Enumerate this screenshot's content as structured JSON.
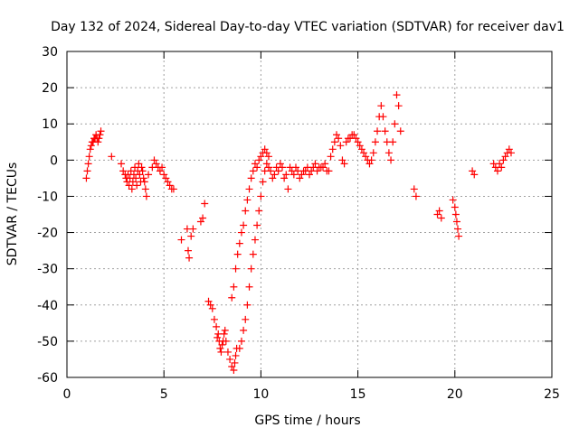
{
  "chart_data": {
    "type": "scatter",
    "title": "Day 132 of 2024, Sidereal Day-to-day VTEC variation (SDTVAR) for receiver dav1",
    "xlabel": "GPS time / hours",
    "ylabel": "SDTVAR / TECUs",
    "xlim": [
      0,
      25
    ],
    "ylim": [
      -60,
      30
    ],
    "xticks": [
      0,
      5,
      10,
      15,
      20,
      25
    ],
    "yticks": [
      -60,
      -50,
      -40,
      -30,
      -20,
      -10,
      0,
      10,
      20,
      30
    ],
    "grid": true,
    "marker": "+",
    "color": "#ff0000",
    "series": [
      {
        "name": "SDTVAR",
        "x": [
          1.0,
          1.05,
          1.1,
          1.15,
          1.2,
          1.25,
          1.3,
          1.35,
          1.4,
          1.45,
          1.5,
          1.55,
          1.6,
          1.65,
          1.7,
          1.75,
          2.3,
          2.8,
          2.9,
          3.0,
          3.05,
          3.1,
          3.15,
          3.2,
          3.25,
          3.3,
          3.35,
          3.4,
          3.45,
          3.5,
          3.55,
          3.6,
          3.65,
          3.7,
          3.75,
          3.8,
          3.85,
          3.9,
          3.95,
          4.0,
          4.05,
          4.1,
          4.2,
          4.4,
          4.5,
          4.6,
          4.7,
          4.8,
          4.9,
          5.0,
          5.1,
          5.2,
          5.3,
          5.4,
          5.5,
          5.9,
          6.2,
          6.25,
          6.3,
          6.4,
          6.5,
          6.9,
          7.0,
          7.1,
          7.3,
          7.4,
          7.5,
          7.6,
          7.7,
          7.75,
          7.8,
          7.85,
          7.9,
          7.95,
          8.0,
          8.05,
          8.1,
          8.15,
          8.2,
          8.3,
          8.4,
          8.5,
          8.6,
          8.65,
          8.7,
          8.75,
          8.5,
          8.6,
          8.7,
          8.8,
          8.9,
          9.0,
          9.1,
          9.2,
          9.3,
          9.4,
          9.5,
          9.6,
          9.7,
          9.8,
          9.9,
          10.0,
          10.1,
          10.2,
          10.3,
          8.9,
          9.0,
          9.1,
          9.2,
          9.3,
          9.4,
          9.5,
          9.6,
          9.7,
          9.8,
          9.9,
          10.0,
          10.1,
          10.2,
          10.3,
          10.4,
          10.4,
          10.5,
          10.6,
          10.7,
          10.8,
          10.9,
          11.0,
          11.1,
          11.2,
          11.3,
          11.4,
          11.5,
          11.6,
          11.7,
          11.8,
          11.9,
          12.0,
          12.1,
          12.2,
          12.3,
          12.4,
          12.5,
          12.6,
          12.7,
          12.8,
          12.9,
          13.0,
          13.1,
          13.2,
          13.3,
          13.4,
          13.5,
          13.6,
          13.7,
          13.8,
          13.9,
          14.0,
          14.1,
          14.2,
          14.3,
          14.4,
          14.5,
          14.6,
          14.7,
          14.8,
          14.9,
          15.0,
          15.1,
          15.2,
          15.3,
          15.4,
          15.5,
          15.6,
          15.7,
          15.8,
          15.9,
          16.0,
          16.1,
          16.2,
          16.3,
          16.4,
          16.5,
          16.6,
          16.7,
          16.8,
          16.9,
          17.0,
          17.1,
          17.2,
          17.9,
          18.0,
          19.1,
          19.2,
          19.3,
          19.9,
          20.0,
          20.05,
          20.1,
          20.15,
          20.2,
          20.9,
          21.0,
          22.0,
          22.1,
          22.2,
          22.3,
          22.4,
          22.5,
          22.6,
          22.7,
          22.8,
          22.9
        ],
        "y": [
          -5,
          -3,
          -1,
          1,
          3,
          4,
          5,
          5,
          6,
          6,
          7,
          6,
          5,
          6,
          7,
          8,
          1,
          -1,
          -3,
          -4,
          -5,
          -6,
          -4,
          -7,
          -5,
          -3,
          -8,
          -6,
          -4,
          -2,
          -5,
          -7,
          -3,
          -1,
          -4,
          -6,
          -2,
          -3,
          -5,
          -6,
          -8,
          -10,
          -4,
          -2,
          0,
          -1,
          -2,
          -3,
          -2,
          -4,
          -5,
          -6,
          -7,
          -8,
          -8,
          -22,
          -19,
          -25,
          -27,
          -21,
          -19,
          -17,
          -16,
          -12,
          -39,
          -40,
          -41,
          -44,
          -46,
          -49,
          -48,
          -50,
          -52,
          -53,
          -51,
          -50,
          -48,
          -47,
          -50,
          -53,
          -55,
          -57,
          -58,
          -56,
          -54,
          -52,
          -38,
          -35,
          -30,
          -26,
          -23,
          -20,
          -18,
          -14,
          -11,
          -8,
          -5,
          -3,
          -1,
          -2,
          0,
          1,
          2,
          3,
          2,
          -52,
          -50,
          -47,
          -44,
          -40,
          -35,
          -30,
          -26,
          -22,
          -18,
          -14,
          -10,
          -6,
          -3,
          -1,
          1,
          -2,
          -3,
          -5,
          -4,
          -2,
          -3,
          -1,
          -2,
          -5,
          -4,
          -8,
          -2,
          -3,
          -4,
          -2,
          -3,
          -5,
          -4,
          -3,
          -3,
          -2,
          -4,
          -3,
          -2,
          -1,
          -3,
          -2,
          -2,
          -2,
          -1,
          -3,
          -3,
          1,
          3,
          5,
          7,
          6,
          4,
          0,
          -1,
          5,
          6,
          6,
          7,
          7,
          6,
          5,
          4,
          3,
          2,
          1,
          0,
          -1,
          0,
          2,
          5,
          8,
          12,
          15,
          12,
          8,
          5,
          2,
          0,
          5,
          10,
          18,
          15,
          8,
          -8,
          -10,
          -15,
          -14,
          -16,
          -11,
          -13,
          -15,
          -17,
          -19,
          -21,
          -3,
          -4,
          -1,
          -2,
          -3,
          -1,
          -2,
          0,
          1,
          2,
          3,
          2
        ]
      }
    ]
  }
}
